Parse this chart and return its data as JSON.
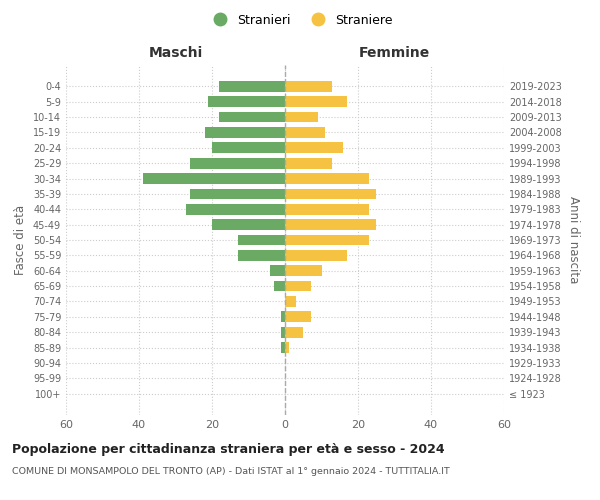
{
  "age_groups": [
    "100+",
    "95-99",
    "90-94",
    "85-89",
    "80-84",
    "75-79",
    "70-74",
    "65-69",
    "60-64",
    "55-59",
    "50-54",
    "45-49",
    "40-44",
    "35-39",
    "30-34",
    "25-29",
    "20-24",
    "15-19",
    "10-14",
    "5-9",
    "0-4"
  ],
  "birth_years": [
    "≤ 1923",
    "1924-1928",
    "1929-1933",
    "1934-1938",
    "1939-1943",
    "1944-1948",
    "1949-1953",
    "1954-1958",
    "1959-1963",
    "1964-1968",
    "1969-1973",
    "1974-1978",
    "1979-1983",
    "1984-1988",
    "1989-1993",
    "1994-1998",
    "1999-2003",
    "2004-2008",
    "2009-2013",
    "2014-2018",
    "2019-2023"
  ],
  "males": [
    0,
    0,
    0,
    1,
    1,
    1,
    0,
    3,
    4,
    13,
    13,
    20,
    27,
    26,
    39,
    26,
    20,
    22,
    18,
    21,
    18
  ],
  "females": [
    0,
    0,
    0,
    1,
    5,
    7,
    3,
    7,
    10,
    17,
    23,
    25,
    23,
    25,
    23,
    13,
    16,
    11,
    9,
    17,
    13
  ],
  "male_color": "#6aaa64",
  "female_color": "#f5c242",
  "background_color": "#ffffff",
  "grid_color": "#cccccc",
  "title": "Popolazione per cittadinanza straniera per età e sesso - 2024",
  "subtitle": "COMUNE DI MONSAMPOLO DEL TRONTO (AP) - Dati ISTAT al 1° gennaio 2024 - TUTTITALIA.IT",
  "left_label": "Maschi",
  "right_label": "Femmine",
  "y_left_label": "Fasce di età",
  "y_right_label": "Anni di nascita",
  "legend_male": "Stranieri",
  "legend_female": "Straniere",
  "xlim": 60,
  "tick_step": 20
}
